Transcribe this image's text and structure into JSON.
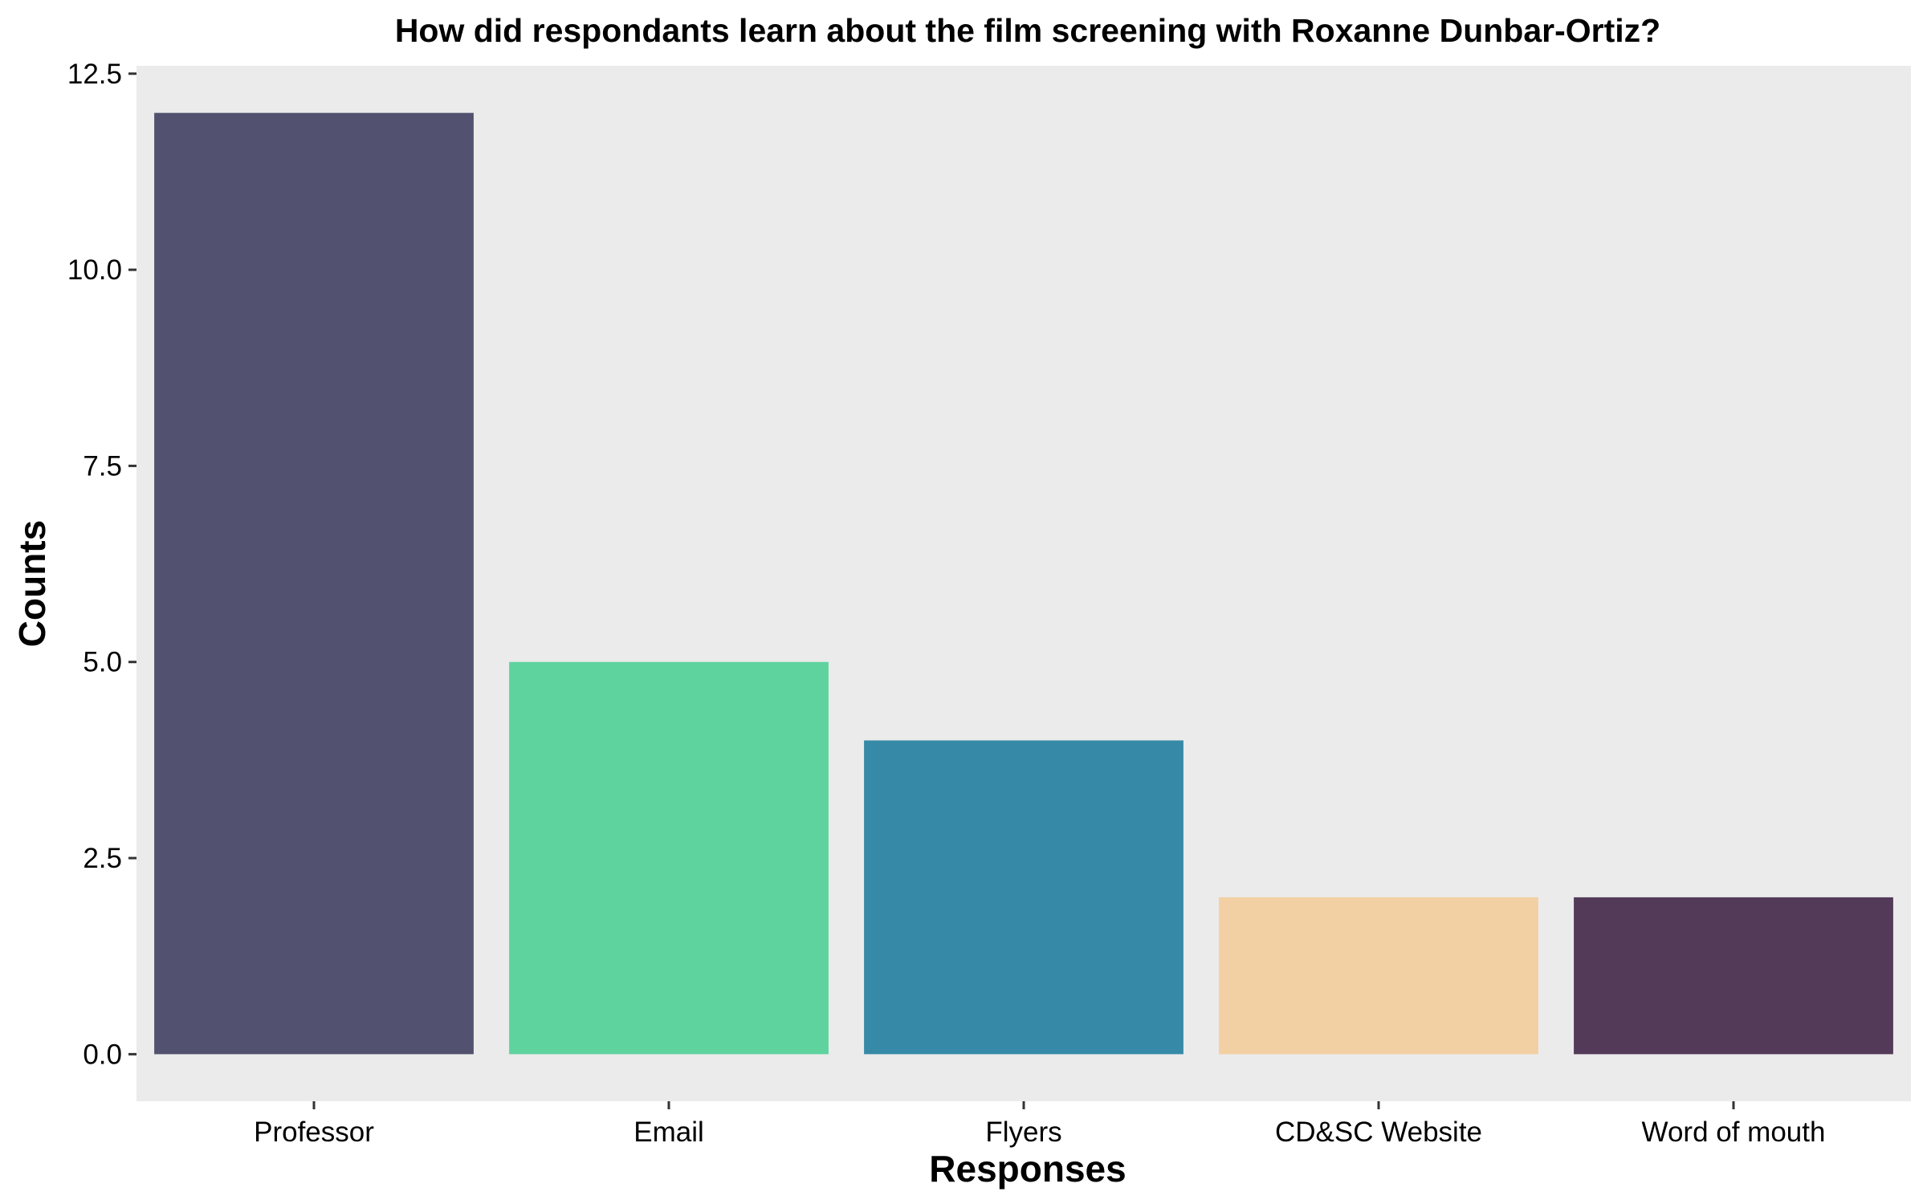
{
  "chart_data": {
    "type": "bar",
    "title": "How did respondants learn about the film screening with Roxanne Dunbar-Ortiz?",
    "xlabel": "Responses",
    "ylabel": "Counts",
    "categories": [
      "Professor",
      "Email",
      "Flyers",
      "CD&SC Website",
      "Word of mouth"
    ],
    "values": [
      12,
      5,
      4,
      2,
      2
    ],
    "colors": [
      "#525270",
      "#5ED39E",
      "#368AA7",
      "#F2D0A3",
      "#533A58"
    ],
    "ylim": [
      -0.6,
      12.6
    ],
    "yticks": [
      0,
      2.5,
      5,
      7.5,
      10,
      12.5
    ],
    "ytick_labels": [
      "0.0",
      "2.5",
      "5.0",
      "7.5",
      "10.0",
      "12.5"
    ],
    "panel_background": "#EBEBEB",
    "grid": false,
    "legend": "none"
  }
}
